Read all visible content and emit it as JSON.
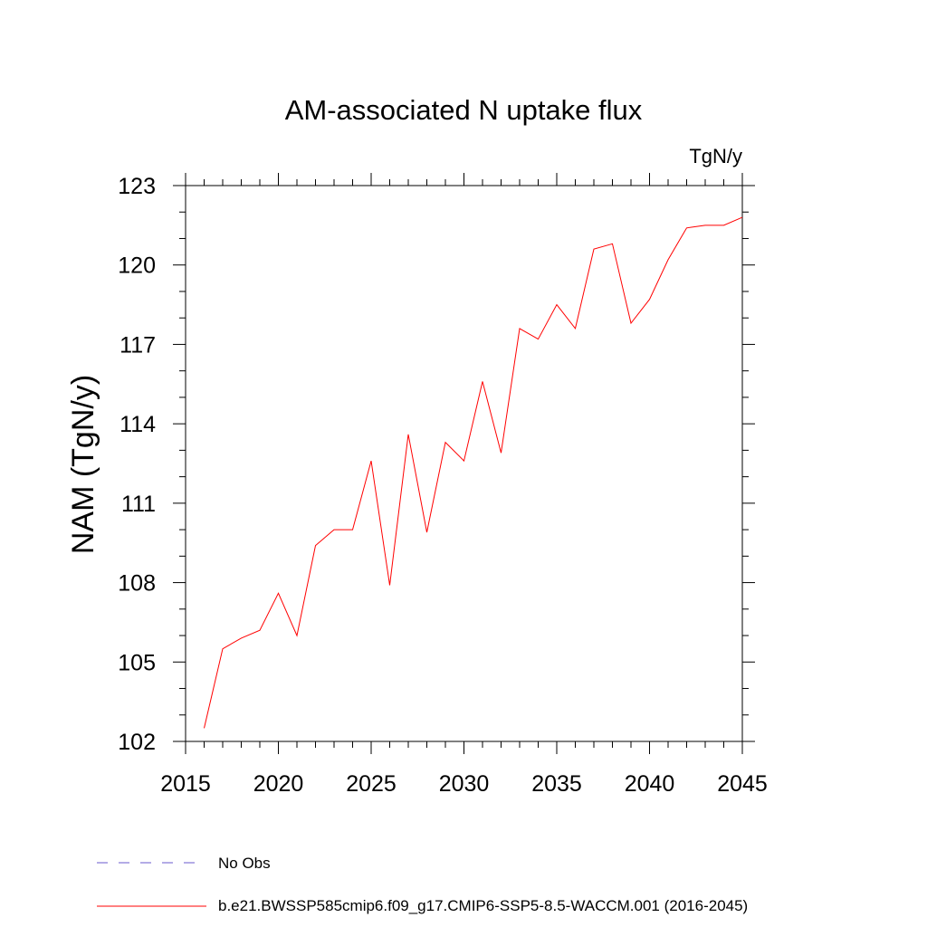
{
  "chart_data": {
    "type": "line",
    "title": "AM-associated N uptake flux",
    "units": "TgN/y",
    "ylabel": "NAM  (TgN/y)",
    "xlabel": "",
    "xlim": [
      2015,
      2045
    ],
    "ylim": [
      102,
      123
    ],
    "x_ticks": [
      2015,
      2020,
      2025,
      2030,
      2035,
      2040,
      2045
    ],
    "y_ticks": [
      102,
      105,
      108,
      111,
      114,
      117,
      120,
      123
    ],
    "grid": false,
    "legend_position": "bottom-left",
    "series": [
      {
        "name": "b.e21.BWSSP585cmip6.f09_g17.CMIP6-SSP5-8.5-WACCM.001 (2016-2045)",
        "color": "#ff0000",
        "style": "solid",
        "x": [
          2016,
          2017,
          2018,
          2019,
          2020,
          2021,
          2022,
          2023,
          2024,
          2025,
          2026,
          2027,
          2028,
          2029,
          2030,
          2031,
          2032,
          2033,
          2034,
          2035,
          2036,
          2037,
          2038,
          2039,
          2040,
          2041,
          2042,
          2043,
          2044,
          2045
        ],
        "y": [
          102.5,
          105.5,
          105.9,
          106.2,
          107.6,
          106.0,
          109.4,
          110.0,
          110.0,
          112.6,
          107.9,
          113.6,
          109.9,
          113.3,
          112.6,
          115.6,
          112.9,
          117.6,
          117.2,
          118.5,
          117.6,
          120.6,
          120.8,
          117.8,
          118.7,
          120.2,
          121.4,
          121.5,
          121.5,
          121.8
        ]
      },
      {
        "name": "No Obs",
        "color": "#6a5acd",
        "style": "dashed",
        "x": [],
        "y": []
      }
    ]
  }
}
